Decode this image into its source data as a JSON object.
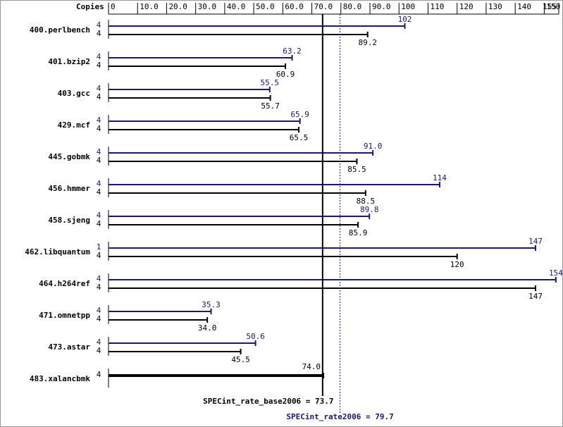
{
  "chart_data": {
    "type": "hbar-pair",
    "axis_title": "Copies",
    "categories": [
      "400.perlbench",
      "401.bzip2",
      "403.gcc",
      "429.mcf",
      "445.gobmk",
      "456.hmmer",
      "458.sjeng",
      "462.libquantum",
      "464.h264ref",
      "471.omnetpp",
      "473.astar",
      "483.xalancbmk"
    ],
    "series": [
      {
        "color": "#191970",
        "copies": [
          4,
          4,
          4,
          4,
          4,
          4,
          4,
          1,
          4,
          4,
          4,
          null
        ],
        "values": [
          102,
          63.2,
          55.5,
          65.9,
          91.0,
          114,
          89.8,
          147,
          154,
          35.3,
          50.6,
          null
        ],
        "value_labels": [
          "102",
          "63.2",
          "55.5",
          "65.9",
          "91.0",
          "114",
          "89.8",
          "147",
          "154",
          "35.3",
          "50.6",
          null
        ]
      },
      {
        "color": "#000000",
        "copies": [
          4,
          4,
          4,
          4,
          4,
          4,
          4,
          4,
          4,
          4,
          4,
          4
        ],
        "values": [
          89.2,
          60.9,
          55.7,
          65.5,
          85.5,
          88.5,
          85.9,
          120,
          147,
          34.0,
          45.5,
          74.0
        ],
        "value_labels": [
          "89.2",
          "60.9",
          "55.7",
          "65.5",
          "85.5",
          "88.5",
          "85.9",
          "120",
          "147",
          "34.0",
          "45.5",
          "74.0"
        ]
      }
    ],
    "xlim": [
      0,
      155
    ],
    "xticks": [
      0,
      {
        "value": 10,
        "label": "10.0"
      },
      {
        "value": 20,
        "label": "20.0"
      },
      {
        "value": 30,
        "label": "30.0"
      },
      {
        "value": 40,
        "label": "40.0"
      },
      {
        "value": 50,
        "label": "50.0"
      },
      {
        "value": 60,
        "label": "60.0"
      },
      {
        "value": 70,
        "label": "70.0"
      },
      {
        "value": 80,
        "label": "80.0"
      },
      {
        "value": 90,
        "label": "90.0"
      },
      100,
      110,
      120,
      130,
      140,
      150,
      155
    ],
    "reference_lines": [
      {
        "value": 73.7,
        "label": "SPECint_rate_base2006 = 73.7",
        "color": "#000000",
        "style": "solid"
      },
      {
        "value": 79.7,
        "label": "SPECint_rate2006 = 79.7",
        "color": "#191970",
        "style": "dotted"
      }
    ]
  }
}
